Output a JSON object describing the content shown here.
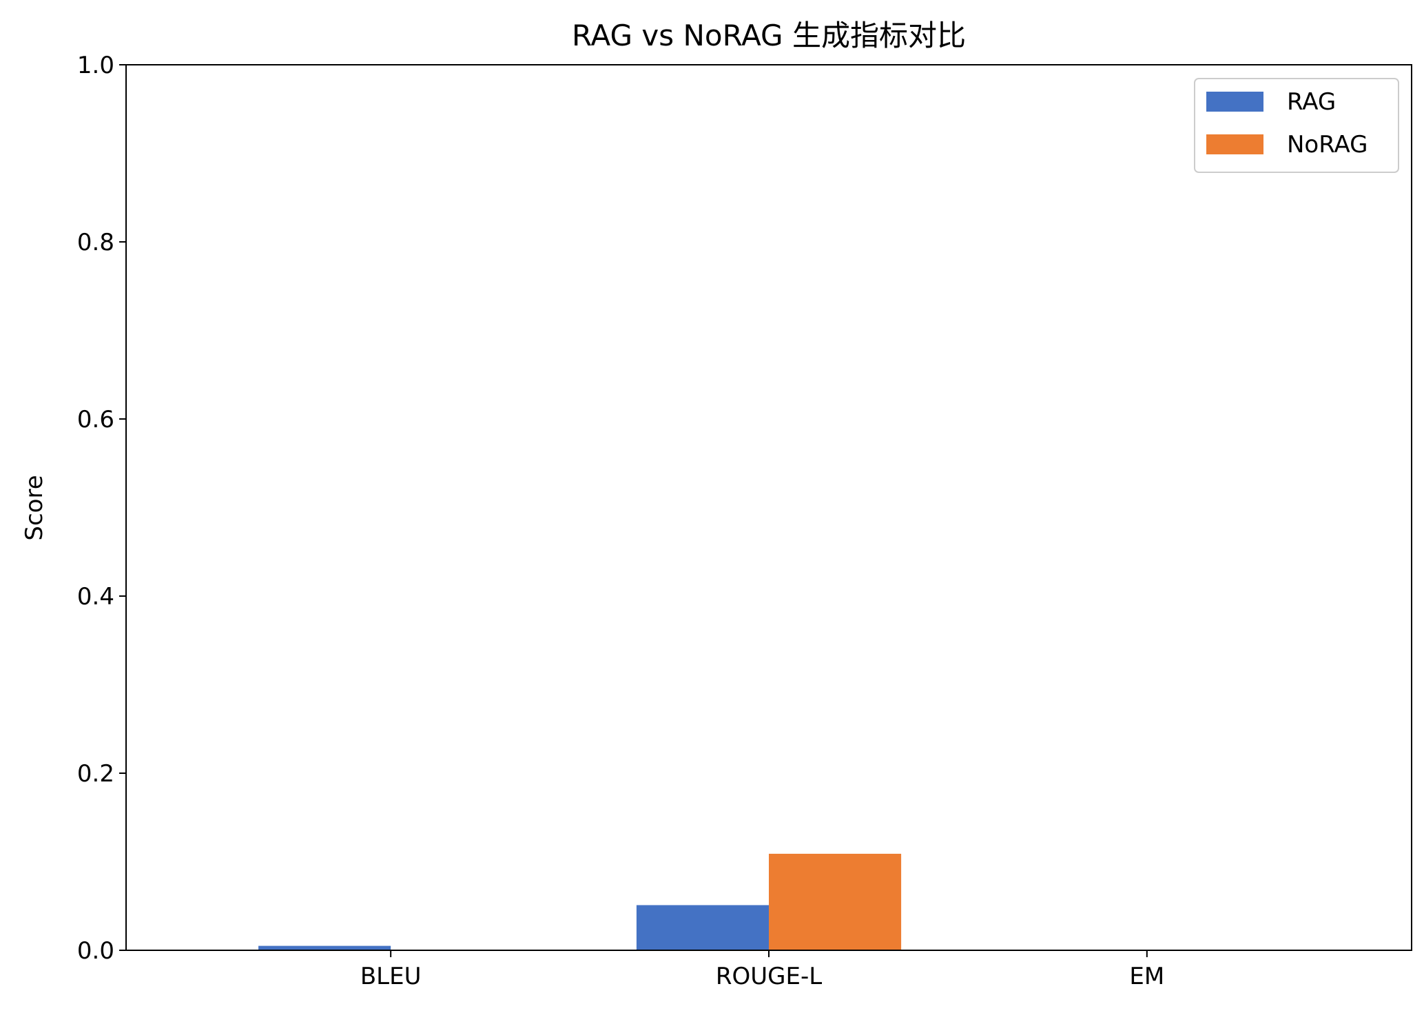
{
  "chart_data": {
    "type": "bar",
    "title": "RAG vs NoRAG 生成指标对比",
    "xlabel": "",
    "ylabel": "Score",
    "categories": [
      "BLEU",
      "ROUGE-L",
      "EM"
    ],
    "series": [
      {
        "name": "RAG",
        "color": "#4472c4",
        "values": [
          0.005,
          0.051,
          0.0
        ]
      },
      {
        "name": "NoRAG",
        "color": "#ed7d31",
        "values": [
          0.0,
          0.109,
          0.0
        ]
      }
    ],
    "ylim": [
      0,
      1.0
    ],
    "yticks": [
      "0.0",
      "0.2",
      "0.4",
      "0.6",
      "0.8",
      "1.0"
    ],
    "grid": false,
    "legend_position": "top-right"
  }
}
